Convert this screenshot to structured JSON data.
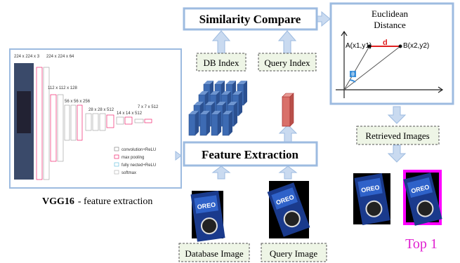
{
  "vgg": {
    "layer_sizes": [
      "224 x 224 x 3",
      "224 x 224 x 64",
      "112 x 112 x 128",
      "56 x 56 x 256",
      "28 x 28 x 512",
      "14 x 14 x 512",
      "7 x 7 x 512"
    ],
    "legend": [
      "convolution+ReLU",
      "max pooling",
      "fully nected+ReLU",
      "softmax"
    ],
    "caption_bold": "VGG16",
    "caption": "- feature extraction"
  },
  "similarity": "Similarity Compare",
  "db_index": "DB Index",
  "query_index": "Query Index",
  "feature_extraction": "Feature Extraction",
  "database_image": "Database Image",
  "query_image": "Query Image",
  "euclidean": {
    "title_line1": "Euclidean",
    "title_line2": "Distance",
    "point_a": "A(x1,y1)",
    "point_b": "B(x2,y2)",
    "d": "d",
    "angle": "θ"
  },
  "retrieved_images": "Retrieved Images",
  "top1": "Top 1"
}
